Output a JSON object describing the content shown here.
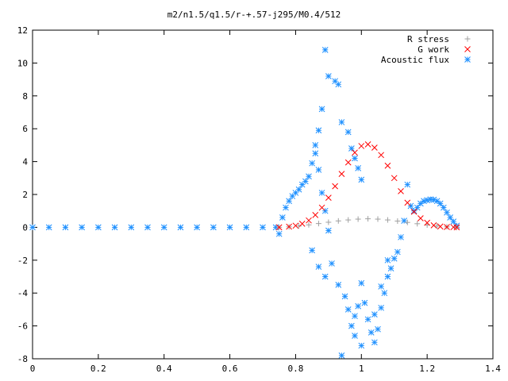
{
  "chart_data": {
    "type": "scatter",
    "title": "m2/n1.5/q1.5/r-+.57-j295/M0.4/512",
    "xlabel": "",
    "ylabel": "",
    "xlim": [
      0,
      1.4
    ],
    "ylim": [
      -8,
      12
    ],
    "xticks": [
      "0",
      "0.2",
      "0.4",
      "0.6",
      "0.8",
      "1",
      "1.2",
      "1.4"
    ],
    "yticks": [
      "-8",
      "-6",
      "-4",
      "-2",
      "0",
      "2",
      "4",
      "6",
      "8",
      "10",
      "12"
    ],
    "legend_position": "top-right",
    "grid": false,
    "series": [
      {
        "name": "R stress",
        "marker": "plus",
        "color": "#a0a0a0",
        "points": [
          [
            0.75,
            0.0
          ],
          [
            0.78,
            0.03
          ],
          [
            0.81,
            0.08
          ],
          [
            0.84,
            0.15
          ],
          [
            0.87,
            0.23
          ],
          [
            0.9,
            0.31
          ],
          [
            0.93,
            0.39
          ],
          [
            0.96,
            0.45
          ],
          [
            0.99,
            0.5
          ],
          [
            1.02,
            0.52
          ],
          [
            1.05,
            0.5
          ],
          [
            1.08,
            0.45
          ],
          [
            1.11,
            0.38
          ],
          [
            1.14,
            0.3
          ],
          [
            1.17,
            0.22
          ],
          [
            1.2,
            0.14
          ],
          [
            1.23,
            0.08
          ],
          [
            1.26,
            0.03
          ],
          [
            1.29,
            0.01
          ]
        ]
      },
      {
        "name": "G work",
        "marker": "cross",
        "color": "#ff0000",
        "points": [
          [
            0.75,
            0.0
          ],
          [
            0.78,
            0.04
          ],
          [
            0.8,
            0.1
          ],
          [
            0.82,
            0.22
          ],
          [
            0.84,
            0.42
          ],
          [
            0.86,
            0.75
          ],
          [
            0.88,
            1.2
          ],
          [
            0.9,
            1.8
          ],
          [
            0.92,
            2.5
          ],
          [
            0.94,
            3.25
          ],
          [
            0.96,
            3.95
          ],
          [
            0.98,
            4.55
          ],
          [
            1.0,
            4.95
          ],
          [
            1.02,
            5.05
          ],
          [
            1.04,
            4.85
          ],
          [
            1.06,
            4.4
          ],
          [
            1.08,
            3.75
          ],
          [
            1.1,
            3.0
          ],
          [
            1.12,
            2.2
          ],
          [
            1.14,
            1.5
          ],
          [
            1.16,
            0.95
          ],
          [
            1.18,
            0.55
          ],
          [
            1.2,
            0.28
          ],
          [
            1.22,
            0.12
          ],
          [
            1.24,
            0.05
          ],
          [
            1.26,
            0.02
          ],
          [
            1.28,
            0.01
          ],
          [
            1.29,
            0.0
          ]
        ]
      },
      {
        "name": "Acoustic flux",
        "marker": "star",
        "color": "#1e90ff",
        "points": [
          [
            0.0,
            0.0
          ],
          [
            0.05,
            0.0
          ],
          [
            0.1,
            0.0
          ],
          [
            0.15,
            0.0
          ],
          [
            0.2,
            0.0
          ],
          [
            0.25,
            0.0
          ],
          [
            0.3,
            0.0
          ],
          [
            0.35,
            0.0
          ],
          [
            0.4,
            0.0
          ],
          [
            0.45,
            0.0
          ],
          [
            0.5,
            0.0
          ],
          [
            0.55,
            0.0
          ],
          [
            0.6,
            0.0
          ],
          [
            0.65,
            0.0
          ],
          [
            0.7,
            0.0
          ],
          [
            0.74,
            0.0
          ],
          [
            0.75,
            -0.4
          ],
          [
            0.76,
            0.6
          ],
          [
            0.77,
            1.2
          ],
          [
            0.78,
            1.6
          ],
          [
            0.79,
            1.9
          ],
          [
            0.8,
            2.1
          ],
          [
            0.81,
            2.3
          ],
          [
            0.82,
            2.6
          ],
          [
            0.83,
            2.8
          ],
          [
            0.84,
            3.1
          ],
          [
            0.85,
            3.9
          ],
          [
            0.86,
            4.5
          ],
          [
            0.87,
            5.9
          ],
          [
            0.88,
            7.2
          ],
          [
            0.89,
            10.8
          ],
          [
            0.9,
            9.2
          ],
          [
            0.92,
            8.9
          ],
          [
            0.93,
            8.7
          ],
          [
            0.94,
            6.4
          ],
          [
            0.96,
            5.8
          ],
          [
            0.97,
            4.8
          ],
          [
            0.98,
            4.2
          ],
          [
            0.99,
            3.6
          ],
          [
            1.0,
            2.9
          ],
          [
            0.86,
            5.0
          ],
          [
            0.87,
            3.5
          ],
          [
            0.88,
            2.1
          ],
          [
            0.89,
            1.0
          ],
          [
            0.9,
            -0.2
          ],
          [
            0.85,
            -1.4
          ],
          [
            0.87,
            -2.4
          ],
          [
            0.89,
            -3.0
          ],
          [
            0.91,
            -2.2
          ],
          [
            0.93,
            -3.5
          ],
          [
            0.95,
            -4.2
          ],
          [
            0.96,
            -5.0
          ],
          [
            0.97,
            -6.0
          ],
          [
            0.98,
            -5.4
          ],
          [
            0.99,
            -4.8
          ],
          [
            1.0,
            -3.4
          ],
          [
            1.01,
            -4.6
          ],
          [
            1.02,
            -5.6
          ],
          [
            1.03,
            -6.4
          ],
          [
            1.04,
            -7.0
          ],
          [
            1.05,
            -6.2
          ],
          [
            1.06,
            -4.9
          ],
          [
            1.07,
            -4.0
          ],
          [
            1.08,
            -3.0
          ],
          [
            1.09,
            -2.5
          ],
          [
            1.1,
            -1.9
          ],
          [
            1.11,
            -1.5
          ],
          [
            0.94,
            -7.8
          ],
          [
            0.98,
            -6.6
          ],
          [
            1.0,
            -7.2
          ],
          [
            1.04,
            -5.3
          ],
          [
            1.06,
            -3.6
          ],
          [
            1.08,
            -2.0
          ],
          [
            1.12,
            -0.6
          ],
          [
            1.13,
            0.4
          ],
          [
            1.14,
            2.6
          ],
          [
            1.15,
            1.3
          ],
          [
            1.16,
            1.0
          ],
          [
            1.17,
            1.2
          ],
          [
            1.18,
            1.45
          ],
          [
            1.19,
            1.6
          ],
          [
            1.2,
            1.65
          ],
          [
            1.21,
            1.7
          ],
          [
            1.22,
            1.68
          ],
          [
            1.23,
            1.6
          ],
          [
            1.24,
            1.45
          ],
          [
            1.25,
            1.2
          ],
          [
            1.26,
            0.9
          ],
          [
            1.27,
            0.6
          ],
          [
            1.28,
            0.35
          ],
          [
            1.29,
            0.1
          ]
        ]
      }
    ]
  }
}
